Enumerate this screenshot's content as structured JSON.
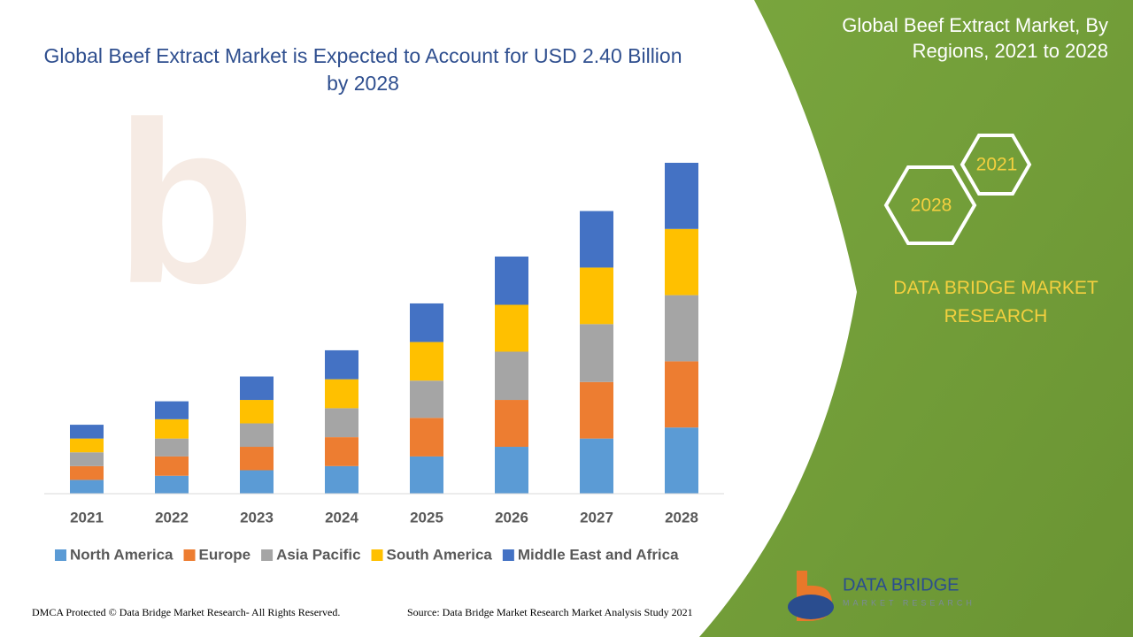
{
  "chart_data": {
    "type": "stacked_bar",
    "title": "Global Beef Extract Market is Expected to Account for USD 2.40 Billion by 2028",
    "categories": [
      "2021",
      "2022",
      "2023",
      "2024",
      "2025",
      "2026",
      "2027",
      "2028"
    ],
    "series": [
      {
        "name": "North America",
        "color": "#5b9bd5",
        "values": [
          0.1,
          0.13,
          0.17,
          0.2,
          0.27,
          0.34,
          0.4,
          0.48
        ]
      },
      {
        "name": "Europe",
        "color": "#ed7d31",
        "values": [
          0.1,
          0.14,
          0.17,
          0.21,
          0.28,
          0.34,
          0.41,
          0.48
        ]
      },
      {
        "name": "Asia Pacific",
        "color": "#a5a5a5",
        "values": [
          0.1,
          0.13,
          0.17,
          0.21,
          0.27,
          0.35,
          0.42,
          0.48
        ]
      },
      {
        "name": "South America",
        "color": "#ffc000",
        "values": [
          0.1,
          0.14,
          0.17,
          0.21,
          0.28,
          0.34,
          0.41,
          0.48
        ]
      },
      {
        "name": "Middle East and Africa",
        "color": "#4472c4",
        "values": [
          0.1,
          0.13,
          0.17,
          0.21,
          0.28,
          0.35,
          0.41,
          0.48
        ]
      }
    ],
    "legend": "bottom"
  },
  "sidebar": {
    "title": "Global Beef Extract Market, By Regions, 2021 to 2028",
    "hexagons": [
      "2021",
      "2028"
    ],
    "brand": "DATA BRIDGE MARKET RESEARCH"
  },
  "logo": {
    "name": "DATA BRIDGE",
    "tagline": "MARKET RESEARCH"
  },
  "footer": {
    "copyright": "DMCA Protected © Data Bridge Market Research- All Rights Reserved.",
    "source": "Source: Data Bridge Market Research Market Analysis Study 2021"
  }
}
